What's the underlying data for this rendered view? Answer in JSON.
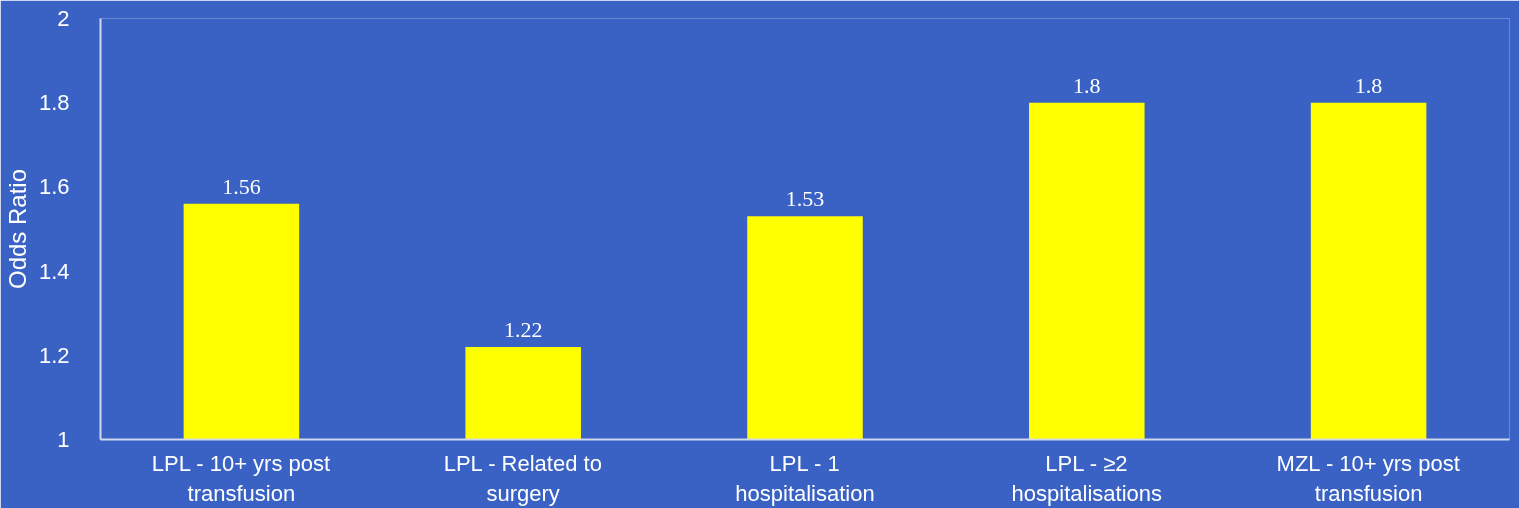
{
  "chart_data": {
    "type": "bar",
    "ylabel": "Odds Ratio",
    "categories": [
      "LPL - 10+ yrs post transfusion",
      "LPL - Related to surgery",
      "LPL - 1 hospitalisation",
      "LPL - ≥2 hospitalisations",
      "MZL - 10+ yrs post transfusion"
    ],
    "values": [
      1.56,
      1.22,
      1.53,
      1.8,
      1.8
    ],
    "color": "#ffff00",
    "ylim": [
      1,
      2
    ],
    "yticks": [
      1,
      1.2,
      1.4,
      1.6,
      1.8,
      2
    ],
    "grid": false,
    "data_labels": true
  }
}
